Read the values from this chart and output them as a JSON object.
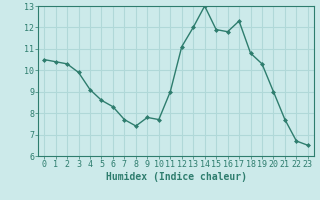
{
  "x": [
    0,
    1,
    2,
    3,
    4,
    5,
    6,
    7,
    8,
    9,
    10,
    11,
    12,
    13,
    14,
    15,
    16,
    17,
    18,
    19,
    20,
    21,
    22,
    23
  ],
  "y": [
    10.5,
    10.4,
    10.3,
    9.9,
    9.1,
    8.6,
    8.3,
    7.7,
    7.4,
    7.8,
    7.7,
    9.0,
    11.1,
    12.0,
    13.0,
    11.9,
    11.8,
    12.3,
    10.8,
    10.3,
    9.0,
    7.7,
    6.7,
    6.5
  ],
  "line_color": "#2e7d6e",
  "marker": "D",
  "marker_size": 2,
  "bg_color": "#cceaea",
  "grid_color": "#b0d8d8",
  "xlabel": "Humidex (Indice chaleur)",
  "xlim": [
    -0.5,
    23.5
  ],
  "ylim": [
    6,
    13
  ],
  "yticks": [
    6,
    7,
    8,
    9,
    10,
    11,
    12,
    13
  ],
  "xticks": [
    0,
    1,
    2,
    3,
    4,
    5,
    6,
    7,
    8,
    9,
    10,
    11,
    12,
    13,
    14,
    15,
    16,
    17,
    18,
    19,
    20,
    21,
    22,
    23
  ],
  "tick_color": "#2e7d6e",
  "label_fontsize": 7,
  "tick_fontsize": 6,
  "linewidth": 1.0
}
